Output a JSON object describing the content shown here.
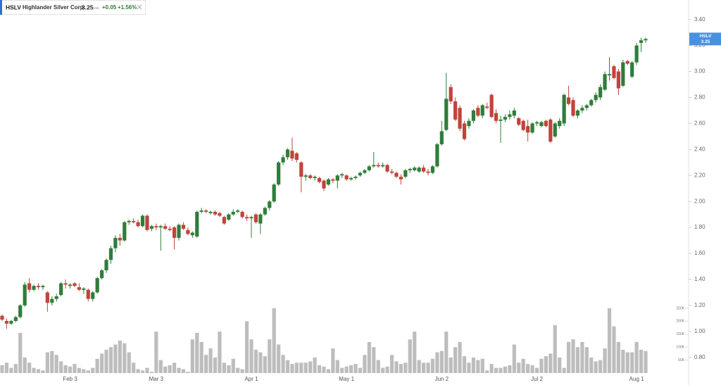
{
  "header": {
    "ticker": "HSLV",
    "name": "Highlander Silver Corp.",
    "price": 3.25,
    "currency": "CAD",
    "change": "+0.05",
    "change_pct": "+1.56%"
  },
  "chart_data": {
    "type": "candlestick",
    "categories": [
      null,
      null,
      null,
      null,
      null,
      null,
      null,
      null,
      null,
      null,
      null,
      null,
      null,
      null,
      null,
      "Feb 3",
      null,
      null,
      null,
      null,
      null,
      null,
      null,
      null,
      null,
      null,
      null,
      null,
      null,
      null,
      null,
      null,
      null,
      null,
      "Mar 3",
      null,
      null,
      null,
      null,
      null,
      null,
      null,
      null,
      null,
      null,
      null,
      null,
      null,
      null,
      null,
      null,
      null,
      null,
      null,
      null,
      "Apr 1",
      null,
      null,
      null,
      null,
      null,
      null,
      null,
      null,
      null,
      null,
      null,
      null,
      null,
      null,
      null,
      null,
      null,
      null,
      null,
      null,
      "May 1",
      null,
      null,
      null,
      null,
      null,
      null,
      null,
      null,
      null,
      null,
      null,
      null,
      null,
      null,
      null,
      null,
      null,
      null,
      null,
      null,
      "Jun 2",
      null,
      null,
      null,
      null,
      null,
      null,
      null,
      null,
      null,
      null,
      null,
      null,
      null,
      null,
      null,
      null,
      null,
      null,
      null,
      null,
      "Jul 2",
      null,
      null,
      null,
      null,
      null,
      null,
      null,
      null,
      null,
      null,
      null,
      null,
      null,
      null,
      null,
      null,
      null,
      null,
      null,
      null,
      null,
      "Aug 1",
      null,
      null
    ],
    "open": [
      1.12,
      1.08,
      1.06,
      1.08,
      1.11,
      1.2,
      1.37,
      1.32,
      1.35,
      1.34,
      1.3,
      1.22,
      1.25,
      1.28,
      1.37,
      1.35,
      1.37,
      1.34,
      1.32,
      1.32,
      1.25,
      1.3,
      1.41,
      1.47,
      1.55,
      1.64,
      1.72,
      1.7,
      1.84,
      1.85,
      1.84,
      1.81,
      1.89,
      1.79,
      1.81,
      1.8,
      1.81,
      1.79,
      1.8,
      1.72,
      1.82,
      1.78,
      1.74,
      1.73,
      1.92,
      1.93,
      1.91,
      1.92,
      1.91,
      1.88,
      1.86,
      1.9,
      1.92,
      1.92,
      1.88,
      1.87,
      1.9,
      1.83,
      1.9,
      1.95,
      2.0,
      2.13,
      2.3,
      2.34,
      2.39,
      2.37,
      2.3,
      2.19,
      2.2,
      2.18,
      2.18,
      2.16,
      2.13,
      2.17,
      2.16,
      2.2,
      2.2,
      2.17,
      2.18,
      2.2,
      2.22,
      2.24,
      2.27,
      2.28,
      2.27,
      2.28,
      2.23,
      2.22,
      2.19,
      2.19,
      2.24,
      2.24,
      2.23,
      2.26,
      2.23,
      2.22,
      2.27,
      2.44,
      2.55,
      2.88,
      2.77,
      2.72,
      2.6,
      2.58,
      2.62,
      2.72,
      2.66,
      2.73,
      2.82,
      2.68,
      2.62,
      2.63,
      2.65,
      2.66,
      2.64,
      2.62,
      2.58,
      2.53,
      2.6,
      2.58,
      2.62,
      2.63,
      2.5,
      2.58,
      2.6,
      2.8,
      2.78,
      2.66,
      2.7,
      2.72,
      2.74,
      2.78,
      2.8,
      2.86,
      2.97,
      3.04,
      3.0,
      2.89,
      3.08,
      2.96,
      3.07,
      3.22,
      3.24
    ],
    "high": [
      1.13,
      1.1,
      1.09,
      1.12,
      1.21,
      1.38,
      1.41,
      1.36,
      1.37,
      1.36,
      1.31,
      1.27,
      1.29,
      1.38,
      1.4,
      1.37,
      1.38,
      1.37,
      1.34,
      1.33,
      1.31,
      1.42,
      1.48,
      1.56,
      1.66,
      1.74,
      1.75,
      1.85,
      1.86,
      1.87,
      1.86,
      1.9,
      1.9,
      1.82,
      1.83,
      1.82,
      1.83,
      1.81,
      1.81,
      1.83,
      1.84,
      1.8,
      1.77,
      1.93,
      1.95,
      1.94,
      1.93,
      1.93,
      1.92,
      1.89,
      1.91,
      1.94,
      1.94,
      1.93,
      1.9,
      1.89,
      1.91,
      1.91,
      1.96,
      2.01,
      2.14,
      2.31,
      2.36,
      2.41,
      2.49,
      2.38,
      2.31,
      2.21,
      2.21,
      2.2,
      2.19,
      2.17,
      2.18,
      2.18,
      2.21,
      2.22,
      2.21,
      2.19,
      2.2,
      2.23,
      2.25,
      2.28,
      2.38,
      2.3,
      2.3,
      2.29,
      2.25,
      2.23,
      2.21,
      2.25,
      2.26,
      2.27,
      2.27,
      2.28,
      2.25,
      2.28,
      2.45,
      2.62,
      2.99,
      2.9,
      2.8,
      2.74,
      2.62,
      2.64,
      2.71,
      2.74,
      2.75,
      2.76,
      2.83,
      2.71,
      2.66,
      2.67,
      2.7,
      2.72,
      2.65,
      2.63,
      2.63,
      2.61,
      2.62,
      2.62,
      2.63,
      2.64,
      2.61,
      2.64,
      2.83,
      2.89,
      2.8,
      2.71,
      2.74,
      2.75,
      2.79,
      2.84,
      2.9,
      3.0,
      3.11,
      3.05,
      3.02,
      3.09,
      3.09,
      3.08,
      3.22,
      3.26,
      3.26
    ],
    "low": [
      1.08,
      1.02,
      1.05,
      1.07,
      1.1,
      1.19,
      1.3,
      1.31,
      1.32,
      1.32,
      1.15,
      1.2,
      1.23,
      1.27,
      1.33,
      1.33,
      1.34,
      1.31,
      1.29,
      1.23,
      1.23,
      1.29,
      1.4,
      1.45,
      1.52,
      1.61,
      1.66,
      1.69,
      1.82,
      1.83,
      1.8,
      1.8,
      1.77,
      1.77,
      1.78,
      1.62,
      1.78,
      1.77,
      1.63,
      1.7,
      1.78,
      1.74,
      1.72,
      1.72,
      1.91,
      1.91,
      1.9,
      1.89,
      1.88,
      1.82,
      1.85,
      1.89,
      1.91,
      1.87,
      1.85,
      1.72,
      1.83,
      1.75,
      1.89,
      1.93,
      1.99,
      2.12,
      2.28,
      2.32,
      2.31,
      2.3,
      2.07,
      2.16,
      2.17,
      2.16,
      2.14,
      2.08,
      2.12,
      2.14,
      2.1,
      2.18,
      2.16,
      2.16,
      2.17,
      2.19,
      2.21,
      2.23,
      2.26,
      2.26,
      2.26,
      2.22,
      2.21,
      2.18,
      2.13,
      2.18,
      2.22,
      2.23,
      2.22,
      2.22,
      2.2,
      2.21,
      2.26,
      2.43,
      2.54,
      2.75,
      2.62,
      2.54,
      2.47,
      2.56,
      2.6,
      2.65,
      2.64,
      2.71,
      2.64,
      2.6,
      2.45,
      2.61,
      2.63,
      2.64,
      2.58,
      2.54,
      2.46,
      2.52,
      2.58,
      2.57,
      2.57,
      2.45,
      2.49,
      2.56,
      2.58,
      2.74,
      2.65,
      2.64,
      2.68,
      2.7,
      2.73,
      2.76,
      2.78,
      2.85,
      2.93,
      2.94,
      2.82,
      2.88,
      3.05,
      2.95,
      3.05,
      3.15,
      3.22
    ],
    "close": [
      1.09,
      1.06,
      1.08,
      1.11,
      1.2,
      1.36,
      1.32,
      1.35,
      1.34,
      1.35,
      1.22,
      1.25,
      1.27,
      1.37,
      1.36,
      1.36,
      1.35,
      1.32,
      1.33,
      1.25,
      1.3,
      1.41,
      1.47,
      1.55,
      1.64,
      1.72,
      1.7,
      1.84,
      1.85,
      1.84,
      1.81,
      1.89,
      1.78,
      1.81,
      1.8,
      1.81,
      1.79,
      1.78,
      1.72,
      1.82,
      1.79,
      1.75,
      1.76,
      1.92,
      1.93,
      1.92,
      1.92,
      1.9,
      1.89,
      1.83,
      1.9,
      1.92,
      1.93,
      1.88,
      1.87,
      1.88,
      1.84,
      1.9,
      1.95,
      2.0,
      2.13,
      2.3,
      2.34,
      2.4,
      2.33,
      2.32,
      2.19,
      2.2,
      2.18,
      2.19,
      2.15,
      2.1,
      2.17,
      2.16,
      2.2,
      2.21,
      2.17,
      2.18,
      2.19,
      2.22,
      2.24,
      2.27,
      2.28,
      2.27,
      2.28,
      2.23,
      2.22,
      2.19,
      2.17,
      2.24,
      2.25,
      2.26,
      2.26,
      2.23,
      2.22,
      2.27,
      2.44,
      2.54,
      2.79,
      2.77,
      2.63,
      2.56,
      2.48,
      2.62,
      2.7,
      2.66,
      2.74,
      2.72,
      2.65,
      2.62,
      2.63,
      2.65,
      2.67,
      2.7,
      2.59,
      2.55,
      2.53,
      2.6,
      2.61,
      2.61,
      2.58,
      2.46,
      2.6,
      2.62,
      2.82,
      2.75,
      2.66,
      2.7,
      2.72,
      2.74,
      2.78,
      2.82,
      2.88,
      2.98,
      2.98,
      2.95,
      2.87,
      3.07,
      3.06,
      3.07,
      3.2,
      3.24,
      3.25
    ],
    "volume": [
      30000,
      40000,
      20000,
      35000,
      155000,
      60000,
      40000,
      20000,
      15000,
      10000,
      80000,
      85000,
      70000,
      45000,
      30000,
      25000,
      35000,
      20000,
      15000,
      10000,
      20000,
      55000,
      75000,
      90000,
      100000,
      110000,
      125000,
      115000,
      80000,
      40000,
      15000,
      10000,
      20000,
      5000,
      160000,
      50000,
      25000,
      30000,
      40000,
      20000,
      15000,
      5000,
      130000,
      155000,
      120000,
      70000,
      95000,
      60000,
      160000,
      40000,
      30000,
      55000,
      20000,
      15000,
      200000,
      130000,
      90000,
      80000,
      65000,
      130000,
      250000,
      110000,
      70000,
      50000,
      35000,
      40000,
      40000,
      40000,
      45000,
      60000,
      30000,
      25000,
      15000,
      95000,
      50000,
      20000,
      25000,
      30000,
      35000,
      20000,
      70000,
      120000,
      100000,
      50000,
      20000,
      25000,
      70000,
      45000,
      35000,
      40000,
      130000,
      160000,
      50000,
      40000,
      40000,
      55000,
      80000,
      85000,
      160000,
      60000,
      100000,
      120000,
      65000,
      40000,
      60000,
      50000,
      55000,
      10000,
      35000,
      20000,
      20000,
      25000,
      30000,
      110000,
      40000,
      55000,
      35000,
      30000,
      20000,
      55000,
      65000,
      75000,
      185000,
      60000,
      20000,
      120000,
      130000,
      100000,
      120000,
      100000,
      60000,
      45000,
      50000,
      95000,
      250000,
      180000,
      120000,
      90000,
      80000,
      80000,
      120000,
      90000,
      85000
    ],
    "up_color": "#2f7d3b",
    "down_color": "#c0443a",
    "volume_color": "#bdbdbd",
    "ylim": [
      0.62,
      3.55
    ],
    "yticks": [
      {
        "value": 0.8,
        "label": "0.80"
      },
      {
        "value": 1.0,
        "label": "1.00"
      },
      {
        "value": 1.2,
        "label": "1.20"
      },
      {
        "value": 1.4,
        "label": "1.40"
      },
      {
        "value": 1.6,
        "label": "1.60"
      },
      {
        "value": 1.8,
        "label": "1.80"
      },
      {
        "value": 2.0,
        "label": "2.00"
      },
      {
        "value": 2.2,
        "label": "2.20"
      },
      {
        "value": 2.4,
        "label": "2.40"
      },
      {
        "value": 2.6,
        "label": "2.60"
      },
      {
        "value": 2.8,
        "label": "2.80"
      },
      {
        "value": 3.0,
        "label": "3.00"
      },
      {
        "value": 3.2,
        "label": "3.20"
      },
      {
        "value": 3.4,
        "label": "3.40"
      }
    ],
    "volume_ylim": [
      0,
      250000
    ],
    "volume_ticks": [
      {
        "value": 50000,
        "label": "50K"
      },
      {
        "value": 100000,
        "label": "100K"
      },
      {
        "value": 150000,
        "label": "150K"
      },
      {
        "value": 200000,
        "label": "200K"
      },
      {
        "value": 250000,
        "label": "250K"
      }
    ]
  }
}
